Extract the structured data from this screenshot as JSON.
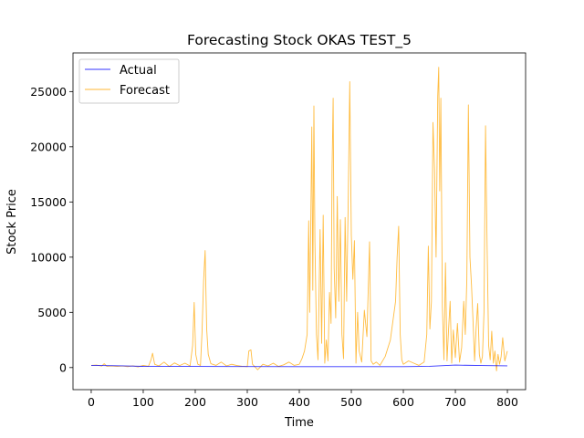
{
  "chart_data": {
    "type": "line",
    "title": "Forecasting Stock OKAS TEST_5",
    "xlabel": "Time",
    "ylabel": "Stock Price",
    "xlim": [
      -35,
      835
    ],
    "ylim": [
      -2000,
      28500
    ],
    "xticks": [
      0,
      100,
      200,
      300,
      400,
      500,
      600,
      700,
      800
    ],
    "yticks": [
      0,
      5000,
      10000,
      15000,
      20000,
      25000
    ],
    "grid": false,
    "legend_position": "top-left",
    "series": [
      {
        "name": "Actual",
        "color": "#0000ff",
        "points": [
          [
            0,
            200
          ],
          [
            60,
            160
          ],
          [
            100,
            110
          ],
          [
            200,
            100
          ],
          [
            300,
            90
          ],
          [
            400,
            85
          ],
          [
            500,
            80
          ],
          [
            600,
            85
          ],
          [
            650,
            120
          ],
          [
            700,
            220
          ],
          [
            750,
            180
          ],
          [
            800,
            160
          ]
        ]
      },
      {
        "name": "Forecast",
        "color": "#ffa500",
        "points": [
          [
            0,
            200
          ],
          [
            10,
            220
          ],
          [
            20,
            130
          ],
          [
            25,
            350
          ],
          [
            30,
            120
          ],
          [
            40,
            150
          ],
          [
            50,
            100
          ],
          [
            60,
            140
          ],
          [
            70,
            80
          ],
          [
            80,
            160
          ],
          [
            90,
            60
          ],
          [
            100,
            200
          ],
          [
            110,
            120
          ],
          [
            115,
            700
          ],
          [
            118,
            1300
          ],
          [
            122,
            300
          ],
          [
            130,
            150
          ],
          [
            140,
            500
          ],
          [
            150,
            100
          ],
          [
            160,
            420
          ],
          [
            170,
            180
          ],
          [
            180,
            400
          ],
          [
            190,
            150
          ],
          [
            195,
            2000
          ],
          [
            198,
            5900
          ],
          [
            201,
            1200
          ],
          [
            205,
            300
          ],
          [
            210,
            200
          ],
          [
            213,
            3200
          ],
          [
            216,
            7800
          ],
          [
            219,
            10600
          ],
          [
            222,
            3500
          ],
          [
            225,
            1200
          ],
          [
            230,
            350
          ],
          [
            240,
            200
          ],
          [
            250,
            500
          ],
          [
            260,
            150
          ],
          [
            270,
            300
          ],
          [
            280,
            180
          ],
          [
            290,
            120
          ],
          [
            300,
            80
          ],
          [
            303,
            1500
          ],
          [
            307,
            1600
          ],
          [
            310,
            300
          ],
          [
            320,
            -200
          ],
          [
            330,
            300
          ],
          [
            340,
            150
          ],
          [
            350,
            400
          ],
          [
            360,
            100
          ],
          [
            370,
            250
          ],
          [
            380,
            500
          ],
          [
            390,
            200
          ],
          [
            400,
            300
          ],
          [
            405,
            800
          ],
          [
            410,
            1500
          ],
          [
            415,
            3000
          ],
          [
            418,
            13300
          ],
          [
            420,
            5000
          ],
          [
            422,
            12500
          ],
          [
            424,
            21800
          ],
          [
            426,
            7000
          ],
          [
            428,
            23700
          ],
          [
            430,
            11500
          ],
          [
            433,
            3000
          ],
          [
            436,
            700
          ],
          [
            440,
            12500
          ],
          [
            443,
            2200
          ],
          [
            446,
            13800
          ],
          [
            449,
            400
          ],
          [
            452,
            2500
          ],
          [
            455,
            600
          ],
          [
            458,
            6800
          ],
          [
            461,
            4000
          ],
          [
            463,
            18000
          ],
          [
            465,
            24400
          ],
          [
            467,
            9000
          ],
          [
            470,
            4500
          ],
          [
            473,
            15500
          ],
          [
            476,
            6000
          ],
          [
            479,
            13400
          ],
          [
            482,
            3000
          ],
          [
            485,
            800
          ],
          [
            488,
            13600
          ],
          [
            491,
            6000
          ],
          [
            494,
            15000
          ],
          [
            497,
            25900
          ],
          [
            500,
            12000
          ],
          [
            503,
            8000
          ],
          [
            506,
            11500
          ],
          [
            509,
            400
          ],
          [
            512,
            5000
          ],
          [
            515,
            1500
          ],
          [
            520,
            500
          ],
          [
            525,
            5200
          ],
          [
            530,
            2800
          ],
          [
            535,
            11400
          ],
          [
            538,
            600
          ],
          [
            542,
            300
          ],
          [
            548,
            500
          ],
          [
            555,
            200
          ],
          [
            565,
            1000
          ],
          [
            575,
            2500
          ],
          [
            585,
            6000
          ],
          [
            588,
            10000
          ],
          [
            591,
            12800
          ],
          [
            594,
            3000
          ],
          [
            597,
            700
          ],
          [
            600,
            300
          ],
          [
            610,
            600
          ],
          [
            620,
            400
          ],
          [
            630,
            200
          ],
          [
            640,
            500
          ],
          [
            645,
            3000
          ],
          [
            648,
            11000
          ],
          [
            651,
            3500
          ],
          [
            654,
            6000
          ],
          [
            657,
            22200
          ],
          [
            660,
            18000
          ],
          [
            663,
            10000
          ],
          [
            666,
            24600
          ],
          [
            668,
            27200
          ],
          [
            670,
            16000
          ],
          [
            672,
            24400
          ],
          [
            675,
            5500
          ],
          [
            678,
            700
          ],
          [
            681,
            9500
          ],
          [
            684,
            600
          ],
          [
            687,
            3500
          ],
          [
            690,
            6000
          ],
          [
            693,
            400
          ],
          [
            696,
            3400
          ],
          [
            700,
            900
          ],
          [
            704,
            4000
          ],
          [
            708,
            500
          ],
          [
            712,
            1800
          ],
          [
            716,
            6000
          ],
          [
            719,
            3000
          ],
          [
            722,
            8000
          ],
          [
            725,
            23800
          ],
          [
            728,
            10000
          ],
          [
            731,
            7500
          ],
          [
            734,
            4200
          ],
          [
            737,
            600
          ],
          [
            740,
            3600
          ],
          [
            743,
            5800
          ],
          [
            746,
            1200
          ],
          [
            749,
            400
          ],
          [
            752,
            1000
          ],
          [
            755,
            5000
          ],
          [
            758,
            21900
          ],
          [
            761,
            11000
          ],
          [
            764,
            2000
          ],
          [
            767,
            700
          ],
          [
            770,
            3300
          ],
          [
            773,
            400
          ],
          [
            776,
            1500
          ],
          [
            779,
            -300
          ],
          [
            782,
            1200
          ],
          [
            785,
            300
          ],
          [
            788,
            1000
          ],
          [
            791,
            2700
          ],
          [
            795,
            600
          ],
          [
            800,
            1500
          ]
        ]
      }
    ]
  }
}
